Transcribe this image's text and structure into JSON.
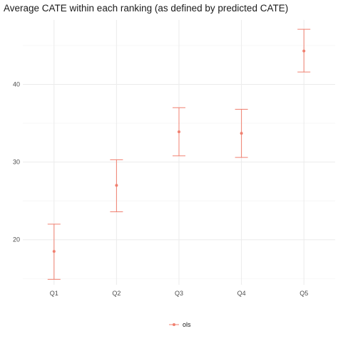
{
  "chart_data": {
    "type": "scatter",
    "title": "Average CATE within each ranking (as defined by predicted CATE)",
    "xlabel": "",
    "ylabel": "",
    "categories": [
      "Q1",
      "Q2",
      "Q3",
      "Q4",
      "Q5"
    ],
    "series": [
      {
        "name": "ols",
        "color": "#f08070",
        "estimate": [
          18.5,
          27.0,
          33.9,
          33.7,
          44.3
        ],
        "lower": [
          14.9,
          23.6,
          30.8,
          30.6,
          41.6
        ],
        "upper": [
          22.0,
          30.3,
          37.0,
          36.8,
          47.1
        ]
      }
    ],
    "ylim": [
      14.2,
      48.3
    ],
    "yticks": [
      20,
      30,
      40
    ],
    "grid": true,
    "legend_position": "bottom",
    "colors": {
      "grid_major": "#ebebeb",
      "grid_minor": "#f5f5f5",
      "series": "#f08070"
    }
  }
}
